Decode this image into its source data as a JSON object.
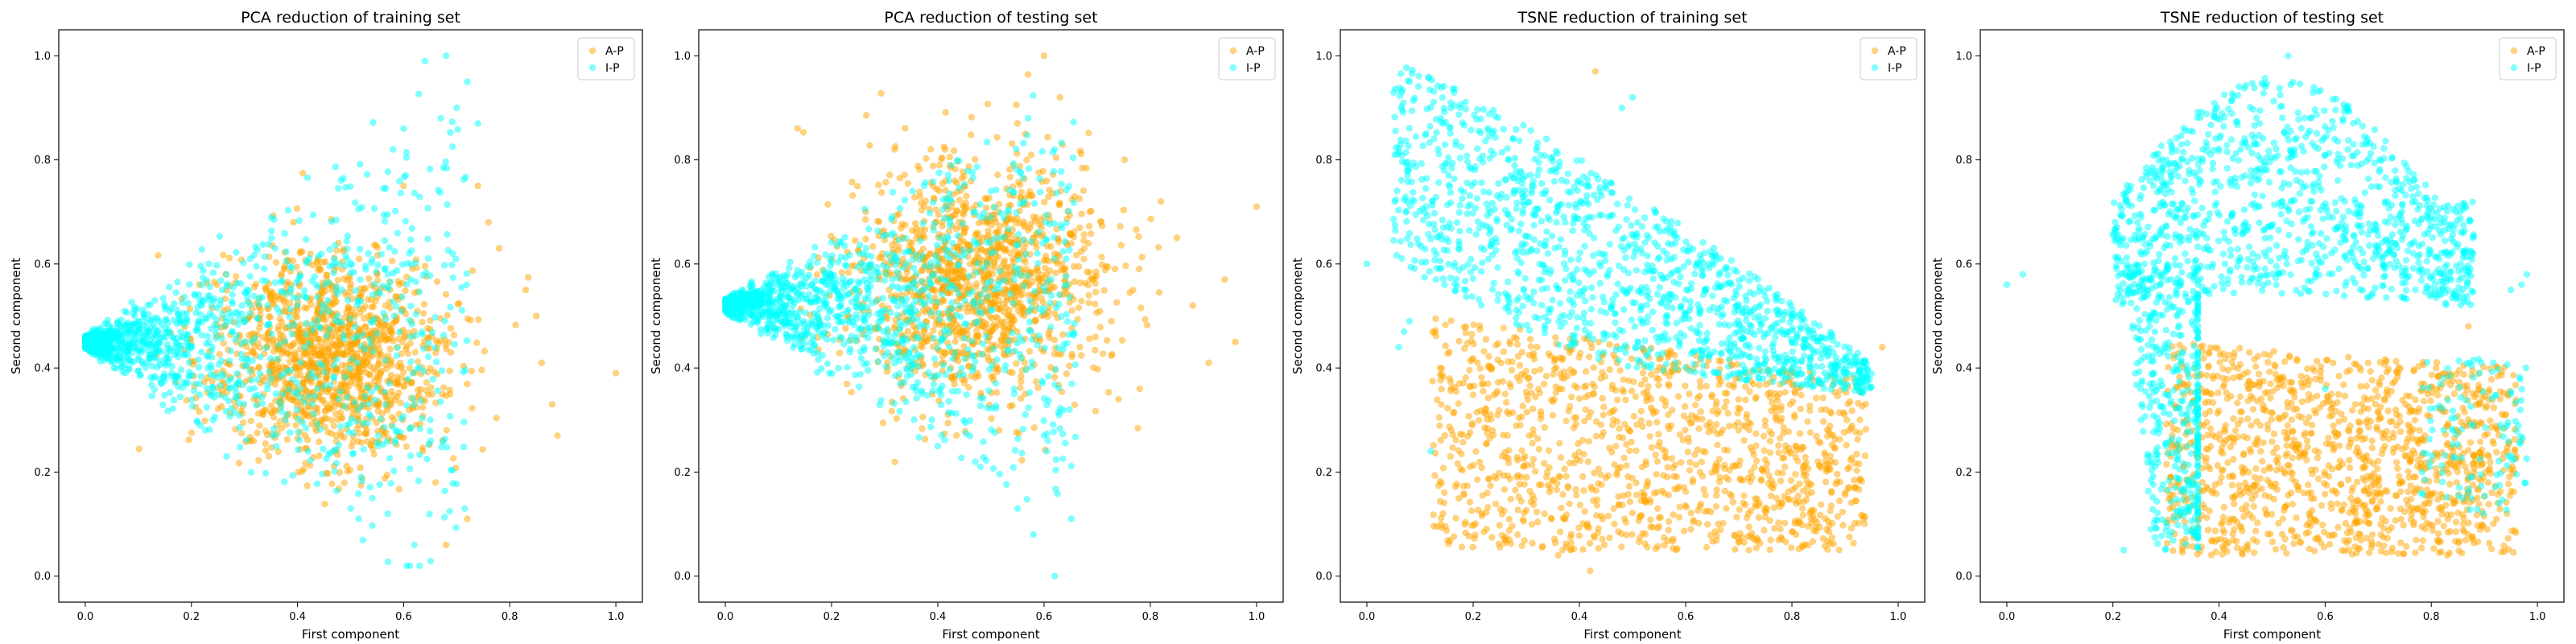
{
  "chart_data": [
    {
      "type": "scatter",
      "title": "PCA reduction of training set",
      "xlabel": "First component",
      "ylabel": "Second component",
      "xlim": [
        -0.05,
        1.05
      ],
      "ylim": [
        -0.05,
        1.05
      ],
      "xticks": [
        "0.0",
        "0.2",
        "0.4",
        "0.6",
        "0.8",
        "1.0"
      ],
      "yticks": [
        "0.0",
        "0.2",
        "0.4",
        "0.6",
        "0.8",
        "1.0"
      ],
      "legend": "top-right",
      "series": [
        {
          "name": "A-P",
          "color": "#ffa500",
          "pattern": "pca-train-ap",
          "points": [
            [
              1.0,
              0.39
            ],
            [
              0.89,
              0.27
            ],
            [
              0.88,
              0.33
            ],
            [
              0.85,
              0.5
            ],
            [
              0.83,
              0.55
            ],
            [
              0.78,
              0.63
            ],
            [
              0.76,
              0.68
            ],
            [
              0.74,
              0.75
            ],
            [
              0.72,
              0.11
            ],
            [
              0.68,
              0.06
            ],
            [
              0.66,
              0.18
            ],
            [
              0.6,
              0.75
            ],
            [
              0.86,
              0.41
            ]
          ]
        },
        {
          "name": "I-P",
          "color": "#00ffff",
          "pattern": "pca-train-ip",
          "points": [
            [
              0.68,
              1.0
            ],
            [
              0.64,
              0.99
            ],
            [
              0.72,
              0.95
            ],
            [
              0.7,
              0.9
            ],
            [
              0.67,
              0.88
            ],
            [
              0.74,
              0.87
            ],
            [
              0.6,
              0.86
            ],
            [
              0.58,
              0.82
            ],
            [
              0.62,
              0.06
            ],
            [
              0.57,
              0.12
            ],
            [
              0.5,
              0.13
            ],
            [
              0.42,
              0.24
            ]
          ]
        }
      ]
    },
    {
      "type": "scatter",
      "title": "PCA reduction of testing set",
      "xlabel": "First component",
      "ylabel": "Second component",
      "xlim": [
        -0.05,
        1.05
      ],
      "ylim": [
        -0.05,
        1.05
      ],
      "xticks": [
        "0.0",
        "0.2",
        "0.4",
        "0.6",
        "0.8",
        "1.0"
      ],
      "yticks": [
        "0.0",
        "0.2",
        "0.4",
        "0.6",
        "0.8",
        "1.0"
      ],
      "legend": "top-right",
      "series": [
        {
          "name": "A-P",
          "color": "#ffa500",
          "pattern": "pca-test-ap",
          "points": [
            [
              1.0,
              0.71
            ],
            [
              0.94,
              0.57
            ],
            [
              0.96,
              0.45
            ],
            [
              0.91,
              0.41
            ],
            [
              0.88,
              0.52
            ],
            [
              0.85,
              0.65
            ],
            [
              0.82,
              0.72
            ],
            [
              0.78,
              0.36
            ],
            [
              0.74,
              0.34
            ],
            [
              0.63,
              0.92
            ],
            [
              0.6,
              1.0
            ],
            [
              0.55,
              0.87
            ]
          ]
        },
        {
          "name": "I-P",
          "color": "#00ffff",
          "pattern": "pca-test-ip",
          "points": [
            [
              0.62,
              0.0
            ],
            [
              0.58,
              0.08
            ],
            [
              0.55,
              0.13
            ],
            [
              0.48,
              0.21
            ],
            [
              0.4,
              0.25
            ],
            [
              0.6,
              0.27
            ],
            [
              0.57,
              0.88
            ],
            [
              0.62,
              0.82
            ],
            [
              0.5,
              0.74
            ]
          ]
        }
      ]
    },
    {
      "type": "scatter",
      "title": "TSNE reduction of training set",
      "xlabel": "First component",
      "ylabel": "Second component",
      "xlim": [
        -0.05,
        1.05
      ],
      "ylim": [
        -0.05,
        1.05
      ],
      "xticks": [
        "0.0",
        "0.2",
        "0.4",
        "0.6",
        "0.8",
        "1.0"
      ],
      "yticks": [
        "0.0",
        "0.2",
        "0.4",
        "0.6",
        "0.8",
        "1.0"
      ],
      "legend": "top-right",
      "series": [
        {
          "name": "A-P",
          "color": "#ffa500",
          "pattern": "tsne-train-ap",
          "points": [
            [
              0.43,
              0.97
            ],
            [
              0.42,
              0.01
            ],
            [
              0.36,
              0.04
            ],
            [
              0.61,
              0.09
            ],
            [
              0.82,
              0.13
            ],
            [
              0.14,
              0.33
            ],
            [
              0.97,
              0.44
            ]
          ]
        },
        {
          "name": "I-P",
          "color": "#00ffff",
          "pattern": "tsne-train-ip",
          "points": [
            [
              0.07,
              0.47
            ],
            [
              0.06,
              0.44
            ],
            [
              0.08,
              0.49
            ],
            [
              0.0,
              0.6
            ],
            [
              0.5,
              0.92
            ],
            [
              0.48,
              0.9
            ],
            [
              0.12,
              0.24
            ],
            [
              0.13,
              0.57
            ]
          ]
        }
      ]
    },
    {
      "type": "scatter",
      "title": "TSNE reduction of testing set",
      "xlabel": "First component",
      "ylabel": "Second component",
      "xlim": [
        -0.05,
        1.05
      ],
      "ylim": [
        -0.05,
        1.05
      ],
      "xticks": [
        "0.0",
        "0.2",
        "0.4",
        "0.6",
        "0.8",
        "1.0"
      ],
      "yticks": [
        "0.0",
        "0.2",
        "0.4",
        "0.6",
        "0.8",
        "1.0"
      ],
      "legend": "top-right",
      "series": [
        {
          "name": "A-P",
          "color": "#ffa500",
          "pattern": "tsne-test-ap",
          "points": [
            [
              0.97,
              0.26
            ],
            [
              0.96,
              0.23
            ],
            [
              0.83,
              0.04
            ],
            [
              0.87,
              0.48
            ]
          ]
        },
        {
          "name": "I-P",
          "color": "#00ffff",
          "pattern": "tsne-test-ip",
          "points": [
            [
              0.53,
              1.0
            ],
            [
              0.98,
              0.58
            ],
            [
              0.97,
              0.56
            ],
            [
              0.0,
              0.56
            ],
            [
              0.03,
              0.58
            ],
            [
              0.95,
              0.55
            ],
            [
              0.22,
              0.05
            ],
            [
              0.6,
              0.36
            ]
          ]
        }
      ]
    }
  ]
}
